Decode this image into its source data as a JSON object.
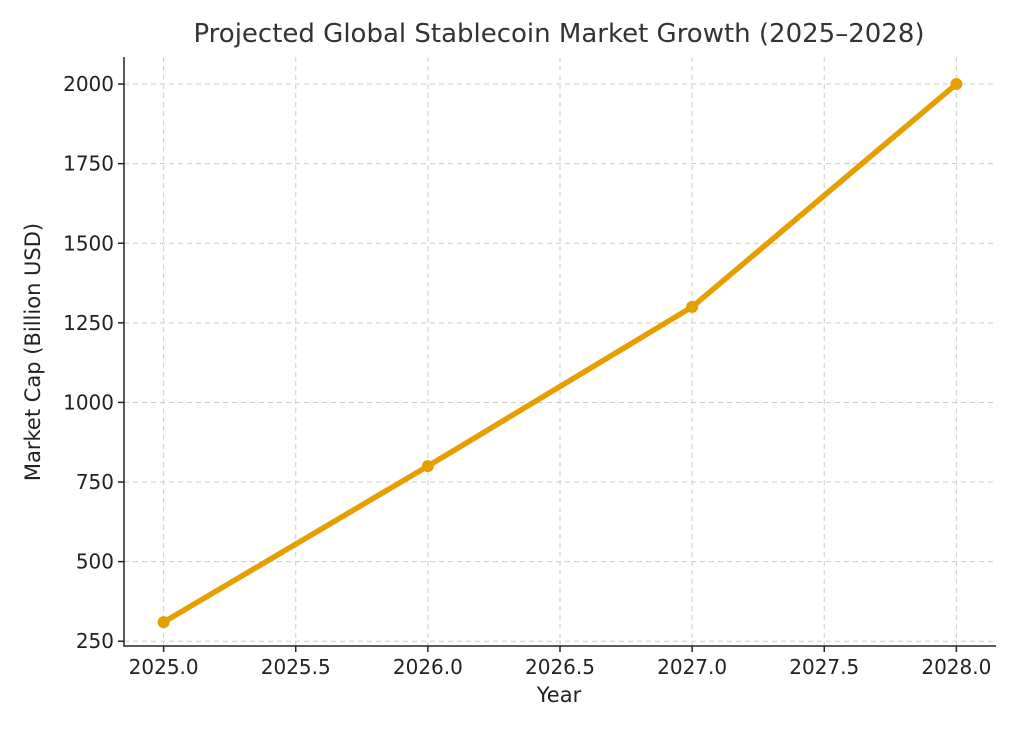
{
  "chart_data": {
    "type": "line",
    "title": "Projected Global Stablecoin Market Growth (2025–2028)",
    "xlabel": "Year",
    "ylabel": "Market Cap (Billion USD)",
    "xlim": [
      2024.85,
      2028.15
    ],
    "ylim": [
      235,
      2085
    ],
    "x_ticks": [
      "2025.0",
      "2025.5",
      "2026.0",
      "2026.5",
      "2027.0",
      "2027.5",
      "2028.0"
    ],
    "y_ticks": [
      "250",
      "500",
      "750",
      "1000",
      "1250",
      "1500",
      "1750",
      "2000"
    ],
    "grid": true,
    "series": [
      {
        "x": [
          2025,
          2026,
          2027,
          2028
        ],
        "values": [
          310,
          800,
          1300,
          2000
        ],
        "color": "#E69F00",
        "marker": "circle"
      }
    ]
  }
}
